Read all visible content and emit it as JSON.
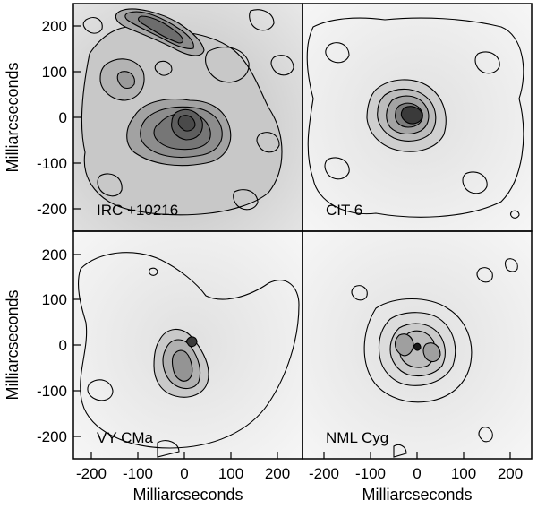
{
  "figure": {
    "x_axis_label": "Milliarcseconds",
    "y_axis_label": "Milliarcseconds",
    "x_ticks": [
      "-200",
      "-100",
      "0",
      "100",
      "200"
    ],
    "y_ticks": [
      "200",
      "100",
      "0",
      "-100",
      "-200"
    ],
    "panels": [
      {
        "id": "irc",
        "label": "IRC +10216"
      },
      {
        "id": "cit",
        "label": "CIT 6"
      },
      {
        "id": "vy",
        "label": "VY CMa"
      },
      {
        "id": "nml",
        "label": "NML Cyg"
      }
    ]
  }
}
